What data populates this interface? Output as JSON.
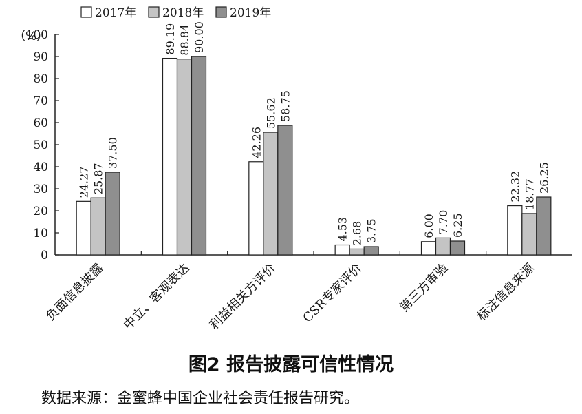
{
  "chart_data": {
    "type": "bar",
    "title": "图2 报告披露可信性情况",
    "source": "数据来源：金蜜蜂中国企业社会责任报告研究。",
    "ylabel": "（%）",
    "ylim": [
      0,
      100
    ],
    "yticks": [
      "0",
      "10",
      "20",
      "30",
      "40",
      "50",
      "60",
      "70",
      "80",
      "90",
      "100"
    ],
    "categories": [
      "负面信息披露",
      "中立、客观表达",
      "利益相关方评价",
      "CSR专家评价",
      "第三方审验",
      "标注信息来源"
    ],
    "series": [
      {
        "name": "2017年",
        "color": "#ffffff",
        "values": [
          24.27,
          89.19,
          42.26,
          4.53,
          6.0,
          22.32
        ],
        "labels": [
          "24.27",
          "89.19",
          "42.26",
          "4.53",
          "6.00",
          "22.32"
        ]
      },
      {
        "name": "2018年",
        "color": "#c4c4c4",
        "values": [
          25.87,
          88.84,
          55.62,
          2.68,
          7.7,
          18.77
        ],
        "labels": [
          "25.87",
          "88.84",
          "55.62",
          "2.68",
          "7.70",
          "18.77"
        ]
      },
      {
        "name": "2019年",
        "color": "#8f8f8f",
        "values": [
          37.5,
          90.0,
          58.75,
          3.75,
          6.25,
          26.25
        ],
        "labels": [
          "37.50",
          "90.00",
          "58.75",
          "3.75",
          "6.25",
          "26.25"
        ]
      }
    ],
    "legend_position": "top-left",
    "grid": false
  }
}
